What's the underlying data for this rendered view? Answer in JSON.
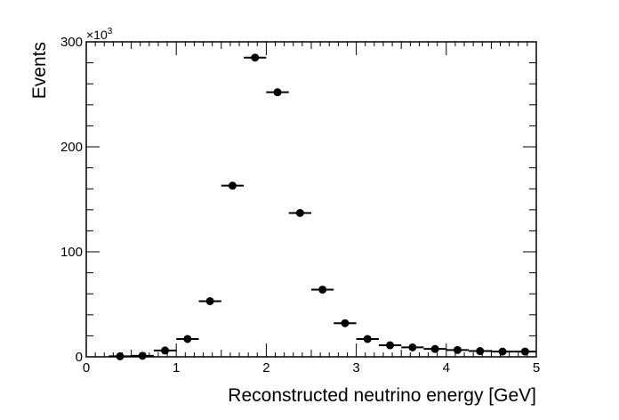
{
  "chart_data": {
    "type": "scatter",
    "title": "",
    "xlabel": "Reconstructed neutrino energy [GeV]",
    "ylabel": "Events",
    "xlim": [
      0,
      5
    ],
    "ylim": [
      0,
      300000
    ],
    "y_scale_note_base": "×10",
    "y_scale_note_exp": "3",
    "x_ticks": [
      0,
      1,
      2,
      3,
      4,
      5
    ],
    "y_ticks": [
      0,
      100,
      200,
      300
    ],
    "grid": false,
    "legend": "none",
    "marker_color": "#000000",
    "series": [
      {
        "x": [
          0.375,
          0.625,
          0.875,
          1.125,
          1.375,
          1.625,
          1.875,
          2.125,
          2.375,
          2.625,
          2.875,
          3.125,
          3.375,
          3.625,
          3.875,
          4.125,
          4.375,
          4.625,
          4.875
        ],
        "x_err": 0.125,
        "y": [
          500,
          1000,
          6000,
          17000,
          53000,
          163000,
          285000,
          252000,
          137000,
          64000,
          32000,
          17000,
          11000,
          9000,
          7500,
          6500,
          5500,
          5000,
          5000
        ]
      }
    ]
  }
}
